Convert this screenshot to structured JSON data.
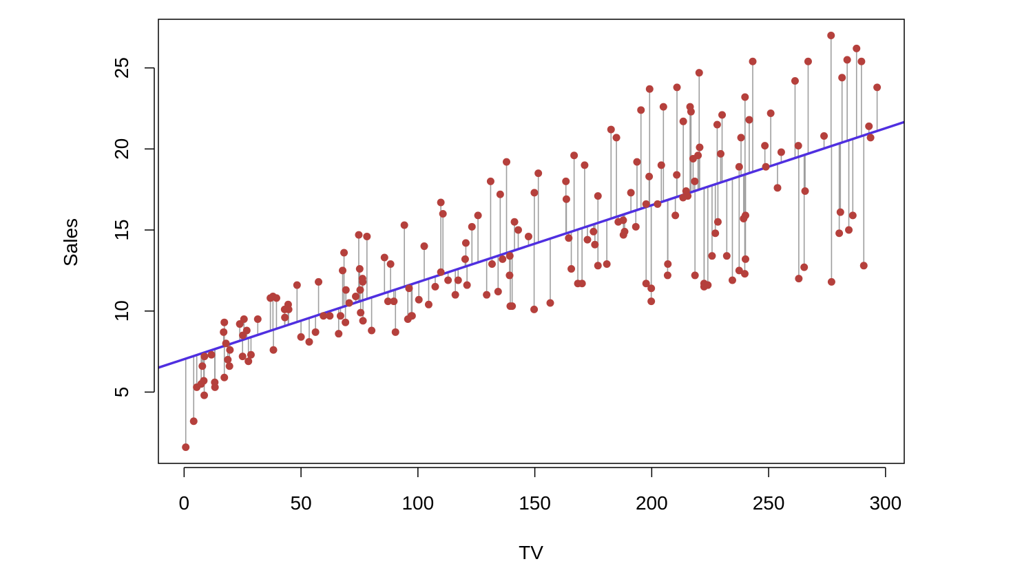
{
  "chart_data": {
    "type": "scatter",
    "title": "",
    "xlabel": "TV",
    "ylabel": "Sales",
    "xlim": [
      -11,
      308
    ],
    "ylim": [
      0.6,
      28.0
    ],
    "x_ticks": [
      0,
      50,
      100,
      150,
      200,
      250,
      300
    ],
    "y_ticks": [
      5,
      10,
      15,
      20,
      25
    ],
    "grid": false,
    "legend": "none",
    "colors": {
      "points": "#b5403c",
      "regression_line": "#4f2fe0",
      "residuals": "#9e9e9e",
      "frame": "#000000"
    },
    "regression": {
      "intercept": 7.03,
      "slope": 0.0475
    },
    "show_residuals": true,
    "series": [
      {
        "points": [
          [
            0.7,
            1.6
          ],
          [
            4.1,
            3.2
          ],
          [
            5.4,
            5.3
          ],
          [
            7.3,
            5.5
          ],
          [
            7.8,
            6.6
          ],
          [
            8.4,
            5.7
          ],
          [
            8.6,
            4.8
          ],
          [
            8.7,
            7.2
          ],
          [
            11.7,
            7.3
          ],
          [
            13.1,
            5.6
          ],
          [
            13.2,
            5.3
          ],
          [
            17.2,
            5.9
          ],
          [
            17.2,
            9.3
          ],
          [
            16.9,
            8.7
          ],
          [
            17.9,
            8.0
          ],
          [
            18.7,
            7.0
          ],
          [
            19.4,
            6.6
          ],
          [
            19.6,
            7.6
          ],
          [
            23.8,
            9.2
          ],
          [
            25.0,
            7.2
          ],
          [
            25.1,
            8.5
          ],
          [
            25.6,
            9.5
          ],
          [
            26.8,
            8.8
          ],
          [
            27.5,
            6.9
          ],
          [
            28.6,
            7.3
          ],
          [
            31.5,
            9.5
          ],
          [
            36.9,
            10.8
          ],
          [
            38.0,
            10.9
          ],
          [
            38.2,
            7.6
          ],
          [
            39.5,
            10.8
          ],
          [
            43.0,
            10.1
          ],
          [
            43.1,
            9.6
          ],
          [
            44.5,
            10.4
          ],
          [
            44.7,
            10.1
          ],
          [
            48.3,
            11.6
          ],
          [
            50.0,
            8.4
          ],
          [
            53.5,
            8.1
          ],
          [
            56.2,
            8.7
          ],
          [
            57.5,
            11.8
          ],
          [
            59.6,
            9.7
          ],
          [
            62.3,
            9.7
          ],
          [
            66.1,
            8.6
          ],
          [
            66.9,
            9.7
          ],
          [
            67.8,
            12.5
          ],
          [
            68.4,
            13.6
          ],
          [
            69.0,
            9.3
          ],
          [
            69.2,
            11.3
          ],
          [
            70.6,
            10.5
          ],
          [
            73.4,
            10.9
          ],
          [
            74.7,
            14.7
          ],
          [
            75.1,
            12.6
          ],
          [
            75.3,
            11.3
          ],
          [
            75.5,
            9.9
          ],
          [
            76.3,
            12.0
          ],
          [
            76.4,
            11.8
          ],
          [
            76.5,
            9.4
          ],
          [
            78.2,
            14.6
          ],
          [
            80.2,
            8.8
          ],
          [
            85.7,
            13.3
          ],
          [
            87.2,
            10.6
          ],
          [
            88.3,
            12.9
          ],
          [
            89.7,
            10.6
          ],
          [
            90.4,
            8.7
          ],
          [
            94.2,
            15.3
          ],
          [
            95.7,
            9.5
          ],
          [
            96.2,
            11.4
          ],
          [
            97.2,
            9.7
          ],
          [
            97.5,
            9.7
          ],
          [
            100.4,
            10.7
          ],
          [
            102.7,
            14.0
          ],
          [
            104.6,
            10.4
          ],
          [
            107.4,
            11.5
          ],
          [
            109.8,
            12.4
          ],
          [
            109.8,
            16.7
          ],
          [
            110.7,
            16.0
          ],
          [
            112.9,
            11.9
          ],
          [
            116.0,
            11.0
          ],
          [
            117.2,
            11.9
          ],
          [
            120.2,
            13.2
          ],
          [
            120.5,
            14.2
          ],
          [
            121.0,
            11.6
          ],
          [
            123.1,
            15.2
          ],
          [
            125.7,
            15.9
          ],
          [
            129.4,
            11.0
          ],
          [
            131.1,
            18.0
          ],
          [
            131.7,
            12.9
          ],
          [
            134.3,
            11.2
          ],
          [
            135.2,
            17.2
          ],
          [
            136.2,
            13.2
          ],
          [
            137.9,
            19.2
          ],
          [
            139.2,
            12.2
          ],
          [
            139.3,
            13.4
          ],
          [
            139.5,
            10.3
          ],
          [
            140.3,
            10.3
          ],
          [
            141.3,
            15.5
          ],
          [
            142.9,
            15.0
          ],
          [
            147.3,
            14.6
          ],
          [
            149.7,
            10.1
          ],
          [
            149.8,
            17.3
          ],
          [
            151.5,
            18.5
          ],
          [
            156.6,
            10.5
          ],
          [
            163.3,
            18.0
          ],
          [
            163.5,
            16.9
          ],
          [
            164.5,
            14.5
          ],
          [
            165.6,
            12.6
          ],
          [
            166.8,
            19.6
          ],
          [
            168.4,
            11.7
          ],
          [
            170.2,
            11.7
          ],
          [
            171.3,
            19.0
          ],
          [
            172.5,
            14.4
          ],
          [
            175.1,
            14.9
          ],
          [
            175.7,
            14.1
          ],
          [
            177.0,
            12.8
          ],
          [
            177.0,
            17.1
          ],
          [
            180.8,
            12.9
          ],
          [
            182.6,
            21.2
          ],
          [
            184.9,
            20.7
          ],
          [
            185.7,
            15.5
          ],
          [
            187.8,
            15.6
          ],
          [
            187.9,
            14.7
          ],
          [
            188.4,
            14.9
          ],
          [
            191.1,
            17.3
          ],
          [
            193.2,
            15.2
          ],
          [
            193.7,
            19.2
          ],
          [
            195.4,
            22.4
          ],
          [
            197.6,
            11.7
          ],
          [
            197.6,
            16.6
          ],
          [
            198.9,
            18.3
          ],
          [
            199.1,
            23.7
          ],
          [
            199.8,
            10.6
          ],
          [
            199.8,
            11.4
          ],
          [
            202.5,
            16.6
          ],
          [
            204.1,
            19.0
          ],
          [
            205.0,
            22.6
          ],
          [
            206.8,
            12.2
          ],
          [
            206.9,
            12.9
          ],
          [
            210.1,
            15.9
          ],
          [
            210.7,
            18.4
          ],
          [
            210.8,
            23.8
          ],
          [
            213.4,
            17.0
          ],
          [
            213.5,
            21.7
          ],
          [
            214.7,
            17.4
          ],
          [
            215.4,
            17.1
          ],
          [
            216.4,
            22.6
          ],
          [
            216.8,
            22.3
          ],
          [
            217.7,
            19.4
          ],
          [
            218.4,
            18.0
          ],
          [
            218.5,
            12.2
          ],
          [
            219.8,
            19.6
          ],
          [
            220.3,
            24.7
          ],
          [
            220.5,
            20.1
          ],
          [
            222.4,
            11.7
          ],
          [
            222.4,
            11.5
          ],
          [
            224.0,
            11.6
          ],
          [
            225.8,
            13.4
          ],
          [
            227.2,
            14.8
          ],
          [
            228.0,
            21.5
          ],
          [
            228.3,
            15.5
          ],
          [
            229.5,
            19.7
          ],
          [
            230.1,
            22.1
          ],
          [
            232.1,
            13.4
          ],
          [
            234.5,
            11.9
          ],
          [
            237.4,
            12.5
          ],
          [
            237.4,
            18.9
          ],
          [
            238.2,
            20.7
          ],
          [
            239.3,
            15.7
          ],
          [
            239.8,
            12.3
          ],
          [
            239.9,
            23.2
          ],
          [
            240.1,
            13.2
          ],
          [
            240.1,
            15.9
          ],
          [
            241.7,
            21.8
          ],
          [
            243.2,
            25.4
          ],
          [
            248.4,
            20.2
          ],
          [
            248.8,
            18.9
          ],
          [
            250.9,
            22.2
          ],
          [
            253.8,
            17.6
          ],
          [
            255.4,
            19.8
          ],
          [
            261.3,
            24.2
          ],
          [
            262.7,
            20.2
          ],
          [
            262.9,
            12.0
          ],
          [
            265.2,
            12.7
          ],
          [
            265.6,
            17.4
          ],
          [
            266.9,
            25.4
          ],
          [
            273.7,
            20.8
          ],
          [
            276.7,
            27.0
          ],
          [
            276.9,
            11.8
          ],
          [
            280.2,
            14.8
          ],
          [
            280.7,
            16.1
          ],
          [
            281.4,
            24.4
          ],
          [
            283.6,
            25.5
          ],
          [
            284.3,
            15.0
          ],
          [
            286.0,
            15.9
          ],
          [
            287.6,
            26.2
          ],
          [
            289.7,
            25.4
          ],
          [
            290.7,
            12.8
          ],
          [
            292.9,
            21.4
          ],
          [
            293.6,
            20.7
          ],
          [
            296.4,
            23.8
          ]
        ]
      }
    ]
  }
}
